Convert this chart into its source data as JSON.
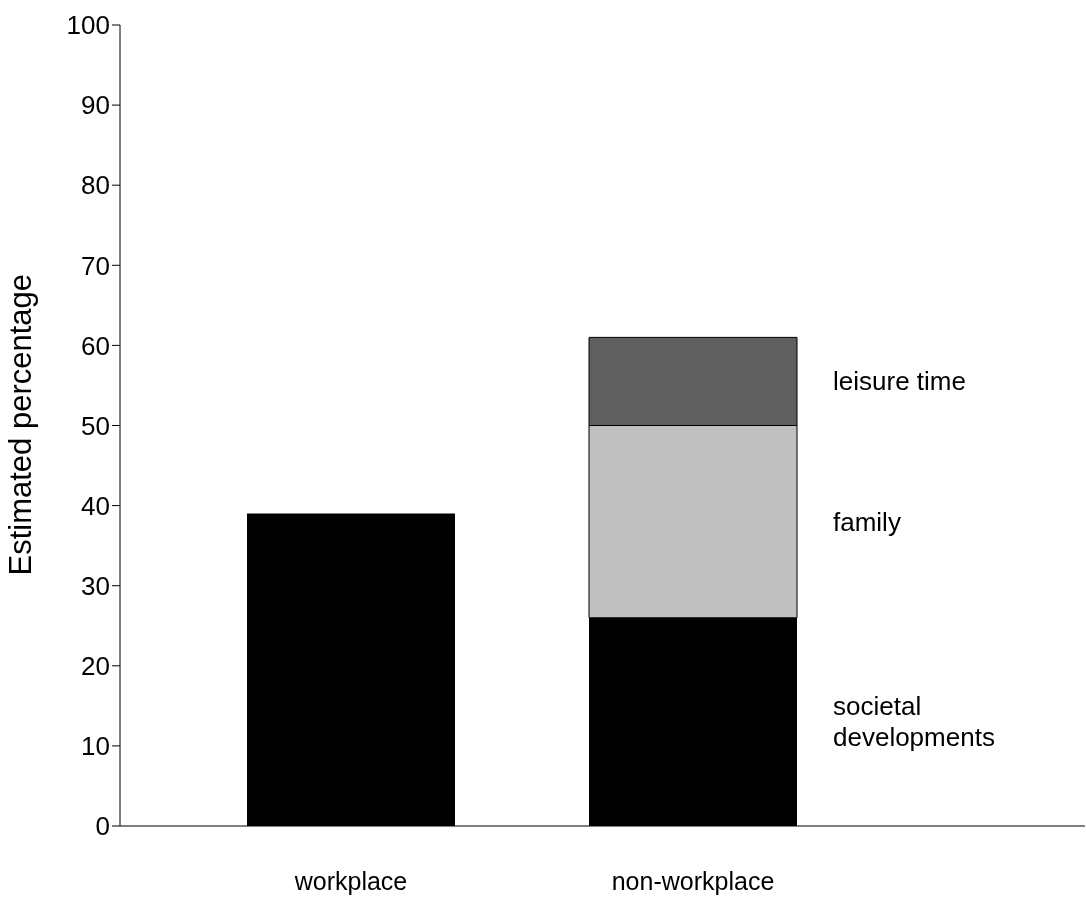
{
  "chart_data": {
    "type": "bar",
    "stacked": true,
    "ylabel": "Estimated percentage",
    "categories": [
      "workplace",
      "non-workplace"
    ],
    "series": [
      {
        "color": "#000000",
        "values": [
          39,
          null
        ]
      },
      {
        "name": "societal developments",
        "color": "#000000",
        "values": [
          null,
          26
        ]
      },
      {
        "name": "family",
        "color": "#c0c0c0",
        "values": [
          null,
          24
        ]
      },
      {
        "name": "leisure time",
        "color": "#606060",
        "values": [
          null,
          11
        ]
      }
    ],
    "ylim": [
      0,
      100
    ],
    "yticks": [
      0,
      10,
      20,
      30,
      40,
      50,
      60,
      70,
      80,
      90,
      100
    ],
    "grid": false,
    "legend": false
  }
}
